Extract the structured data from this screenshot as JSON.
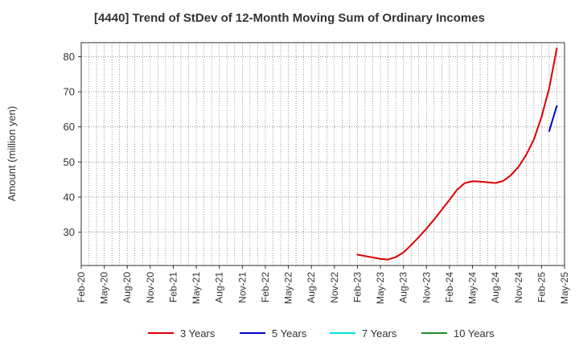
{
  "chart_data": {
    "type": "line",
    "title": "[4440]  Trend of StDev of 12-Month Moving Sum of Ordinary Incomes",
    "xlabel": "",
    "ylabel": "Amount (million yen)",
    "x_ticks": [
      "Feb-20",
      "May-20",
      "Aug-20",
      "Nov-20",
      "Feb-21",
      "May-21",
      "Aug-21",
      "Nov-21",
      "Feb-22",
      "May-22",
      "Aug-22",
      "Nov-22",
      "Feb-23",
      "May-23",
      "Aug-23",
      "Nov-23",
      "Feb-24",
      "May-24",
      "Aug-24",
      "Nov-24",
      "Feb-25",
      "May-25"
    ],
    "y_ticks": [
      30,
      40,
      50,
      60,
      70,
      80
    ],
    "ylim": [
      20.5,
      84
    ],
    "xlim": [
      "Feb-20",
      "May-25"
    ],
    "grid": true,
    "legend_position": "bottom",
    "series": [
      {
        "name": "3 Years",
        "color": "#dd0000",
        "points": [
          [
            "Feb-23",
            23.6
          ],
          [
            "Mar-23",
            23.2
          ],
          [
            "Apr-23",
            22.8
          ],
          [
            "May-23",
            22.4
          ],
          [
            "Jun-23",
            22.2
          ],
          [
            "Jul-23",
            22.9
          ],
          [
            "Aug-23",
            24.2
          ],
          [
            "Sep-23",
            26.3
          ],
          [
            "Oct-23",
            28.6
          ],
          [
            "Nov-23",
            31.0
          ],
          [
            "Dec-23",
            33.6
          ],
          [
            "Jan-24",
            36.4
          ],
          [
            "Feb-24",
            39.2
          ],
          [
            "Mar-24",
            42.1
          ],
          [
            "Apr-24",
            44.0
          ],
          [
            "May-24",
            44.5
          ],
          [
            "Jun-24",
            44.4
          ],
          [
            "Jul-24",
            44.2
          ],
          [
            "Aug-24",
            44.0
          ],
          [
            "Sep-24",
            44.6
          ],
          [
            "Oct-24",
            46.2
          ],
          [
            "Nov-24",
            48.6
          ],
          [
            "Dec-24",
            52.0
          ],
          [
            "Jan-25",
            56.4
          ],
          [
            "Feb-25",
            62.8
          ],
          [
            "Mar-25",
            71.0
          ],
          [
            "Apr-25",
            82.4
          ]
        ]
      },
      {
        "name": "5 Years",
        "color": "#0000cc",
        "points": [
          [
            "Mar-25",
            58.8
          ],
          [
            "Apr-25",
            66.0
          ]
        ]
      },
      {
        "name": "7 Years",
        "color": "#00e5e5",
        "points": []
      },
      {
        "name": "10 Years",
        "color": "#228b22",
        "points": []
      }
    ]
  }
}
